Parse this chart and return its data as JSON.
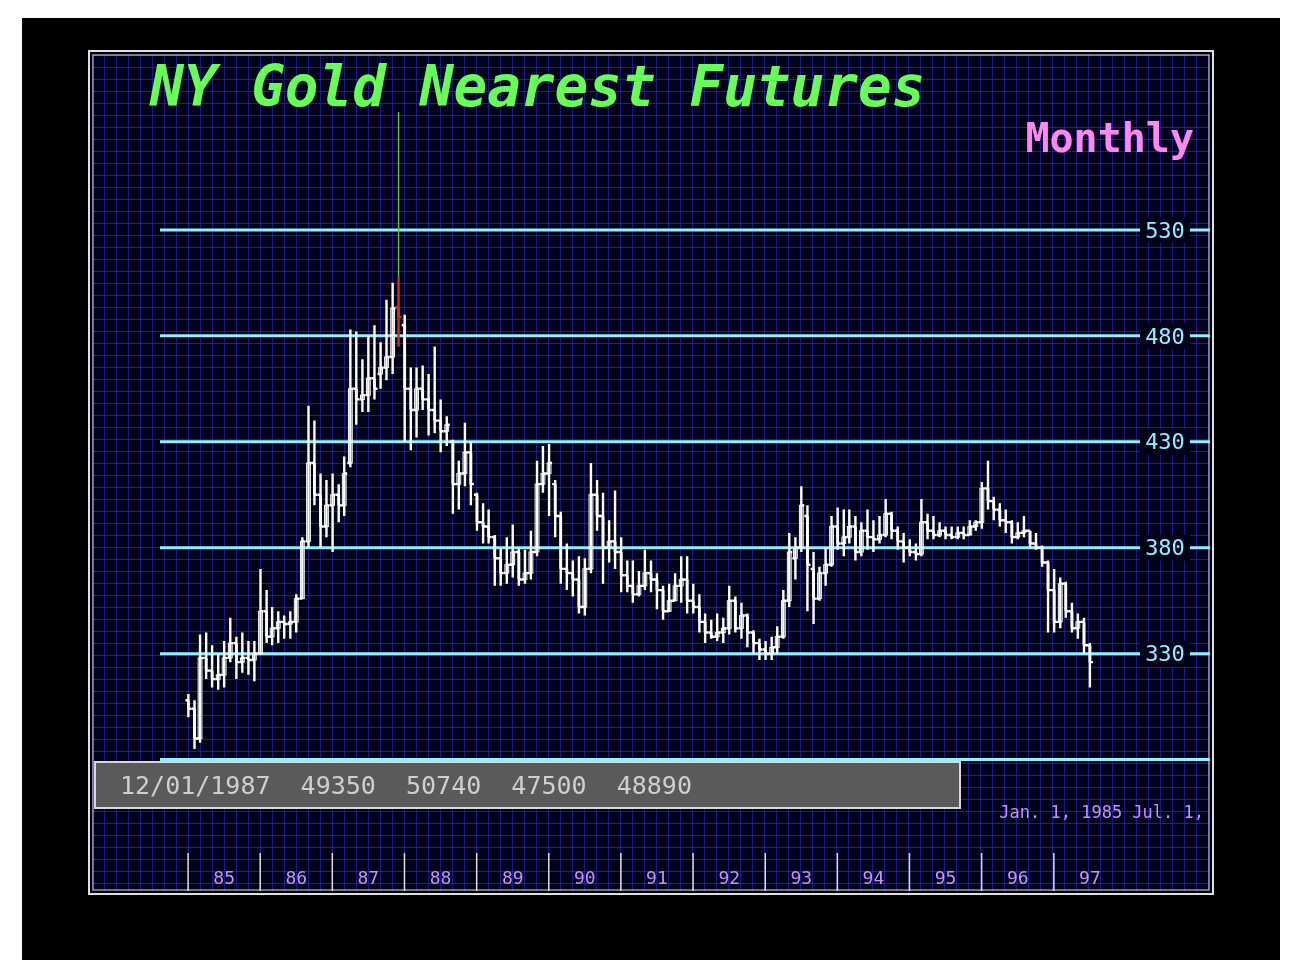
{
  "chart_data": {
    "type": "candlestick",
    "title": "NY Gold Nearest Futures",
    "subtitle": "Monthly",
    "x": [
      "1985-01",
      "1985-02",
      "1985-03",
      "1985-04",
      "1985-05",
      "1985-06",
      "1985-07",
      "1985-08",
      "1985-09",
      "1985-10",
      "1985-11",
      "1985-12",
      "1986-01",
      "1986-02",
      "1986-03",
      "1986-04",
      "1986-05",
      "1986-06",
      "1986-07",
      "1986-08",
      "1986-09",
      "1986-10",
      "1986-11",
      "1986-12",
      "1987-01",
      "1987-02",
      "1987-03",
      "1987-04",
      "1987-05",
      "1987-06",
      "1987-07",
      "1987-08",
      "1987-09",
      "1987-10",
      "1987-11",
      "1987-12",
      "1988-01",
      "1988-02",
      "1988-03",
      "1988-04",
      "1988-05",
      "1988-06",
      "1988-07",
      "1988-08",
      "1988-09",
      "1988-10",
      "1988-11",
      "1988-12",
      "1989-01",
      "1989-02",
      "1989-03",
      "1989-04",
      "1989-05",
      "1989-06",
      "1989-07",
      "1989-08",
      "1989-09",
      "1989-10",
      "1989-11",
      "1989-12",
      "1990-01",
      "1990-02",
      "1990-03",
      "1990-04",
      "1990-05",
      "1990-06",
      "1990-07",
      "1990-08",
      "1990-09",
      "1990-10",
      "1990-11",
      "1990-12",
      "1991-01",
      "1991-02",
      "1991-03",
      "1991-04",
      "1991-05",
      "1991-06",
      "1991-07",
      "1991-08",
      "1991-09",
      "1991-10",
      "1991-11",
      "1991-12",
      "1992-01",
      "1992-02",
      "1992-03",
      "1992-04",
      "1992-05",
      "1992-06",
      "1992-07",
      "1992-08",
      "1992-09",
      "1992-10",
      "1992-11",
      "1992-12",
      "1993-01",
      "1993-02",
      "1993-03",
      "1993-04",
      "1993-05",
      "1993-06",
      "1993-07",
      "1993-08",
      "1993-09",
      "1993-10",
      "1993-11",
      "1993-12",
      "1994-01",
      "1994-02",
      "1994-03",
      "1994-04",
      "1994-05",
      "1994-06",
      "1994-07",
      "1994-08",
      "1994-09",
      "1994-10",
      "1994-11",
      "1994-12",
      "1995-01",
      "1995-02",
      "1995-03",
      "1995-04",
      "1995-05",
      "1995-06",
      "1995-07",
      "1995-08",
      "1995-09",
      "1995-10",
      "1995-11",
      "1995-12",
      "1996-01",
      "1996-02",
      "1996-03",
      "1996-04",
      "1996-05",
      "1996-06",
      "1996-07",
      "1996-08",
      "1996-09",
      "1996-10",
      "1996-11",
      "1996-12",
      "1997-01",
      "1997-02",
      "1997-03",
      "1997-04",
      "1997-05",
      "1997-06",
      "1997-07"
    ],
    "ohlc": [
      [
        308,
        311,
        300,
        304
      ],
      [
        304,
        308,
        285,
        290
      ],
      [
        290,
        339,
        288,
        328
      ],
      [
        328,
        340,
        318,
        322
      ],
      [
        322,
        334,
        314,
        318
      ],
      [
        318,
        330,
        313,
        320
      ],
      [
        320,
        336,
        314,
        328
      ],
      [
        328,
        347,
        326,
        335
      ],
      [
        335,
        338,
        318,
        326
      ],
      [
        326,
        340,
        321,
        328
      ],
      [
        328,
        336,
        320,
        327
      ],
      [
        327,
        336,
        317,
        330
      ],
      [
        330,
        370,
        330,
        350
      ],
      [
        350,
        360,
        335,
        338
      ],
      [
        338,
        352,
        334,
        342
      ],
      [
        342,
        350,
        335,
        345
      ],
      [
        345,
        348,
        337,
        344
      ],
      [
        344,
        350,
        337,
        345
      ],
      [
        345,
        358,
        340,
        356
      ],
      [
        356,
        385,
        356,
        383
      ],
      [
        383,
        447,
        380,
        420
      ],
      [
        420,
        440,
        400,
        405
      ],
      [
        405,
        415,
        380,
        390
      ],
      [
        390,
        412,
        385,
        400
      ],
      [
        400,
        415,
        378,
        405
      ],
      [
        405,
        410,
        392,
        400
      ],
      [
        400,
        423,
        395,
        415
      ],
      [
        420,
        483,
        418,
        455
      ],
      [
        455,
        482,
        438,
        450
      ],
      [
        450,
        469,
        444,
        452
      ],
      [
        452,
        480,
        444,
        460
      ],
      [
        460,
        485,
        450,
        455
      ],
      [
        462,
        477,
        455,
        465
      ],
      [
        465,
        497,
        459,
        470
      ],
      [
        470,
        505,
        462,
        493
      ],
      [
        493.5,
        507.4,
        475,
        488.9
      ],
      [
        485,
        490,
        430,
        455
      ],
      [
        455,
        465,
        426,
        445
      ],
      [
        445,
        465,
        432,
        455
      ],
      [
        455,
        466,
        445,
        450
      ],
      [
        450,
        462,
        433,
        445
      ],
      [
        445,
        475,
        434,
        440
      ],
      [
        440,
        450,
        425,
        435
      ],
      [
        435,
        442,
        428,
        438
      ],
      [
        430,
        431,
        396,
        410
      ],
      [
        410,
        421,
        398,
        415
      ],
      [
        415,
        439,
        409,
        425
      ],
      [
        425,
        430,
        400,
        410
      ],
      [
        405,
        406,
        388,
        392
      ],
      [
        392,
        401,
        382,
        390
      ],
      [
        390,
        398,
        382,
        385
      ],
      [
        385,
        386,
        362,
        375
      ],
      [
        375,
        380,
        362,
        368
      ],
      [
        368,
        385,
        363,
        372
      ],
      [
        372,
        391,
        366,
        378
      ],
      [
        378,
        380,
        362,
        365
      ],
      [
        365,
        379,
        363,
        368
      ],
      [
        368,
        388,
        365,
        378
      ],
      [
        378,
        421,
        376,
        410
      ],
      [
        410,
        428,
        406,
        415
      ],
      [
        415,
        429,
        395,
        420
      ],
      [
        410,
        412,
        385,
        395
      ],
      [
        395,
        397,
        363,
        370
      ],
      [
        370,
        382,
        360,
        368
      ],
      [
        368,
        374,
        357,
        365
      ],
      [
        365,
        376,
        349,
        352
      ],
      [
        352,
        375,
        348,
        370
      ],
      [
        370,
        420,
        368,
        405
      ],
      [
        405,
        412,
        388,
        395
      ],
      [
        395,
        406,
        363,
        380
      ],
      [
        380,
        393,
        373,
        383
      ],
      [
        383,
        407,
        370,
        378
      ],
      [
        378,
        385,
        359,
        367
      ],
      [
        367,
        374,
        359,
        362
      ],
      [
        362,
        374,
        354,
        358
      ],
      [
        358,
        369,
        357,
        362
      ],
      [
        362,
        379,
        360,
        368
      ],
      [
        368,
        374,
        359,
        365
      ],
      [
        365,
        368,
        351,
        360
      ],
      [
        360,
        362,
        346,
        350
      ],
      [
        350,
        363,
        350,
        355
      ],
      [
        355,
        368,
        355,
        362
      ],
      [
        362,
        376,
        354,
        365
      ],
      [
        365,
        376,
        349,
        355
      ],
      [
        355,
        363,
        349,
        352
      ],
      [
        352,
        358,
        340,
        345
      ],
      [
        345,
        349,
        335,
        340
      ],
      [
        340,
        346,
        337,
        338
      ],
      [
        338,
        349,
        336,
        340
      ],
      [
        340,
        347,
        335,
        342
      ],
      [
        342,
        362,
        339,
        355
      ],
      [
        355,
        357,
        340,
        342
      ],
      [
        342,
        354,
        337,
        348
      ],
      [
        348,
        349,
        333,
        340
      ],
      [
        340,
        341,
        330,
        335
      ],
      [
        335,
        337,
        327,
        332
      ],
      [
        332,
        336,
        327,
        330
      ],
      [
        330,
        338,
        327,
        333
      ],
      [
        333,
        343,
        330,
        338
      ],
      [
        338,
        360,
        337,
        355
      ],
      [
        355,
        387,
        352,
        378
      ],
      [
        375,
        385,
        365,
        380
      ],
      [
        380,
        409,
        378,
        400
      ],
      [
        395,
        400,
        350,
        372
      ],
      [
        370,
        378,
        344,
        356
      ],
      [
        356,
        371,
        355,
        368
      ],
      [
        368,
        380,
        362,
        372
      ],
      [
        372,
        395,
        371,
        390
      ],
      [
        390,
        399,
        379,
        382
      ],
      [
        382,
        398,
        376,
        385
      ],
      [
        385,
        398,
        382,
        390
      ],
      [
        390,
        395,
        374,
        378
      ],
      [
        378,
        392,
        376,
        388
      ],
      [
        388,
        398,
        379,
        385
      ],
      [
        385,
        393,
        378,
        384
      ],
      [
        384,
        395,
        382,
        386
      ],
      [
        386,
        403,
        385,
        396
      ],
      [
        396,
        397,
        384,
        388
      ],
      [
        388,
        390,
        379,
        383
      ],
      [
        383,
        387,
        373,
        380
      ],
      [
        380,
        384,
        376,
        378
      ],
      [
        378,
        382,
        374,
        377
      ],
      [
        377,
        403,
        376,
        392
      ],
      [
        392,
        396,
        384,
        388
      ],
      [
        388,
        395,
        384,
        386
      ],
      [
        386,
        392,
        385,
        388
      ],
      [
        388,
        390,
        384,
        386
      ],
      [
        386,
        390,
        384,
        385
      ],
      [
        385,
        390,
        384,
        387
      ],
      [
        387,
        390,
        384,
        386
      ],
      [
        386,
        393,
        386,
        390
      ],
      [
        390,
        393,
        388,
        392
      ],
      [
        392,
        411,
        389,
        408
      ],
      [
        408,
        421,
        398,
        402
      ],
      [
        402,
        404,
        393,
        398
      ],
      [
        398,
        401,
        390,
        393
      ],
      [
        393,
        398,
        387,
        392
      ],
      [
        392,
        393,
        382,
        385
      ],
      [
        385,
        392,
        384,
        387
      ],
      [
        387,
        395,
        385,
        388
      ],
      [
        388,
        388,
        380,
        382
      ],
      [
        382,
        387,
        379,
        380
      ],
      [
        380,
        381,
        371,
        373
      ],
      [
        373,
        374,
        340,
        360
      ],
      [
        360,
        370,
        340,
        345
      ],
      [
        345,
        366,
        342,
        363
      ],
      [
        363,
        364,
        347,
        350
      ],
      [
        350,
        354,
        340,
        342
      ],
      [
        342,
        349,
        337,
        345
      ],
      [
        345,
        347,
        330,
        334
      ],
      [
        334,
        335,
        314,
        326
      ]
    ],
    "colors": [
      "#ffffff",
      "#ffffff",
      "#ffffff",
      "#ffffff",
      "#ffffff",
      "#ffffff",
      "#ffffff",
      "#ffffff",
      "#ffffff",
      "#ffffff",
      "#ffffff",
      "#ffffff",
      "#ffffff",
      "#ffffff",
      "#ffffff",
      "#ffffff",
      "#ffffff",
      "#ffffff",
      "#ffffff",
      "#ffffff",
      "#ffffff",
      "#ffffff",
      "#ffffff",
      "#ffffff",
      "#ffffff",
      "#ffffff",
      "#ffffff",
      "#ffffff",
      "#ffffff",
      "#ffffff",
      "#ffffff",
      "#ffffff",
      "#ffffff",
      "#ffffff",
      "#ffffff",
      "#c83228",
      "#ffffff",
      "#ffffff",
      "#ffffff",
      "#ffffff",
      "#ffffff",
      "#ffffff",
      "#ffffff",
      "#ffffff",
      "#ffffff",
      "#ffffff",
      "#ffffff",
      "#ffffff",
      "#ffffff",
      "#ffffff",
      "#ffffff",
      "#ffffff",
      "#ffffff",
      "#ffffff",
      "#ffffff",
      "#ffffff",
      "#ffffff",
      "#ffffff",
      "#ffffff",
      "#ffffff",
      "#ffffff",
      "#ffffff",
      "#ffffff",
      "#ffffff",
      "#ffffff",
      "#ffffff",
      "#ffffff",
      "#ffffff",
      "#ffffff",
      "#ffffff",
      "#ffffff",
      "#ffffff",
      "#ffffff",
      "#ffffff",
      "#ffffff",
      "#ffffff",
      "#ffffff",
      "#ffffff",
      "#ffffff",
      "#ffffff",
      "#ffffff",
      "#ffffff",
      "#ffffff",
      "#ffffff",
      "#ffffff",
      "#ffffff",
      "#ffffff",
      "#ffffff",
      "#ffffff",
      "#ffffff",
      "#ffffff",
      "#ffffff",
      "#ffffff",
      "#ffffff",
      "#ffffff",
      "#ffffff",
      "#ffffff",
      "#ffffff",
      "#ffffff",
      "#ffffff",
      "#ffffff",
      "#ffffff",
      "#ffffff",
      "#ffffff",
      "#ffffff",
      "#ffffff",
      "#ffffff",
      "#ffffff",
      "#ffffff",
      "#ffffff",
      "#ffffff",
      "#ffffff",
      "#ffffff",
      "#ffffff",
      "#ffffff",
      "#ffffff",
      "#ffffff",
      "#ffffff",
      "#ffffff",
      "#ffffff",
      "#ffffff",
      "#ffffff",
      "#ffffff",
      "#ffffff",
      "#ffffff",
      "#ffffff",
      "#ffffff",
      "#ffffff",
      "#ffffff",
      "#ffffff",
      "#ffffff",
      "#ffffff",
      "#ffffff",
      "#ffffff",
      "#ffffff",
      "#ffffff",
      "#ffffff",
      "#ffffff",
      "#ffffff",
      "#ffffff",
      "#ffffff",
      "#ffffff",
      "#ffffff",
      "#ffffff",
      "#ffffff",
      "#ffffff",
      "#ffffff",
      "#ffffff",
      "#ffffff",
      "#ffffff",
      "#ffffff"
    ],
    "xlim": [
      "1983-09",
      "1999-03"
    ],
    "xticks": [
      {
        "value": "1985-07",
        "label": "85"
      },
      {
        "value": "1986-07",
        "label": "86"
      },
      {
        "value": "1987-07",
        "label": "87"
      },
      {
        "value": "1988-07",
        "label": "88"
      },
      {
        "value": "1989-07",
        "label": "89"
      },
      {
        "value": "1990-07",
        "label": "90"
      },
      {
        "value": "1991-07",
        "label": "91"
      },
      {
        "value": "1992-07",
        "label": "92"
      },
      {
        "value": "1993-07",
        "label": "93"
      },
      {
        "value": "1994-07",
        "label": "94"
      },
      {
        "value": "1995-07",
        "label": "95"
      },
      {
        "value": "1996-07",
        "label": "96"
      },
      {
        "value": "1997-07",
        "label": "97"
      }
    ],
    "ylim": [
      218,
      613
    ],
    "yticks": [
      {
        "value": 280,
        "label": null
      },
      330,
      380,
      430,
      480,
      530
    ],
    "grid": "y",
    "ref_lines": [
      {
        "axis": "x",
        "value": "1987-12",
        "color": "#5fbf3f"
      }
    ],
    "annotations": [
      "12/01/1987  49350  50740  47500  48890",
      "Jan. 1, 1985 Jul. 1,"
    ]
  }
}
